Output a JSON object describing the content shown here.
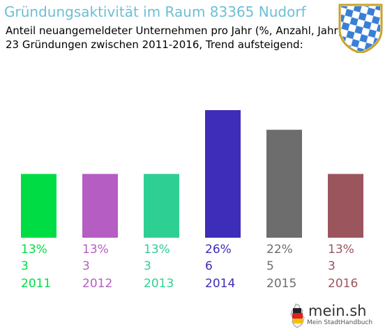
{
  "header": {
    "title": "Gründungsaktivität im Raum 83365 Nudorf",
    "subtitle_line1": "Anteil neuangemeldeter Unternehmen pro Jahr (%, Anzahl, Jahr)",
    "subtitle_line2": "23 Gründungen zwischen 2011-2016, Trend aufsteigend:"
  },
  "colors": {
    "title": "#6bbfd6",
    "emblem_blue": "#3a7fd5",
    "emblem_gold": "#c9a227"
  },
  "emblem": {
    "icon": "bavarian-coat-of-arms-icon"
  },
  "chart_data": {
    "type": "bar",
    "title": "Gründungsaktivität im Raum 83365 Nudorf",
    "xlabel": "",
    "ylabel": "",
    "categories": [
      "2011",
      "2012",
      "2013",
      "2014",
      "2015",
      "2016"
    ],
    "series": [
      {
        "values": [
          13,
          13,
          13,
          26,
          22,
          13
        ]
      },
      {
        "values": [
          3,
          3,
          3,
          6,
          5,
          3
        ]
      }
    ],
    "percent_labels": [
      "13%",
      "13%",
      "13%",
      "26%",
      "22%",
      "13%"
    ],
    "count_labels": [
      "3",
      "3",
      "3",
      "6",
      "5",
      "3"
    ],
    "colors": [
      "#00dd44",
      "#b65dc3",
      "#2ecf92",
      "#3e2db8",
      "#6d6d6d",
      "#9b555d"
    ],
    "ylim": [
      0,
      30
    ],
    "grid": false,
    "legend": "none"
  },
  "footer": {
    "brand": "mein.sh",
    "tagline": "Mein StadtHandbuch",
    "icon": "germany-map-icon"
  }
}
